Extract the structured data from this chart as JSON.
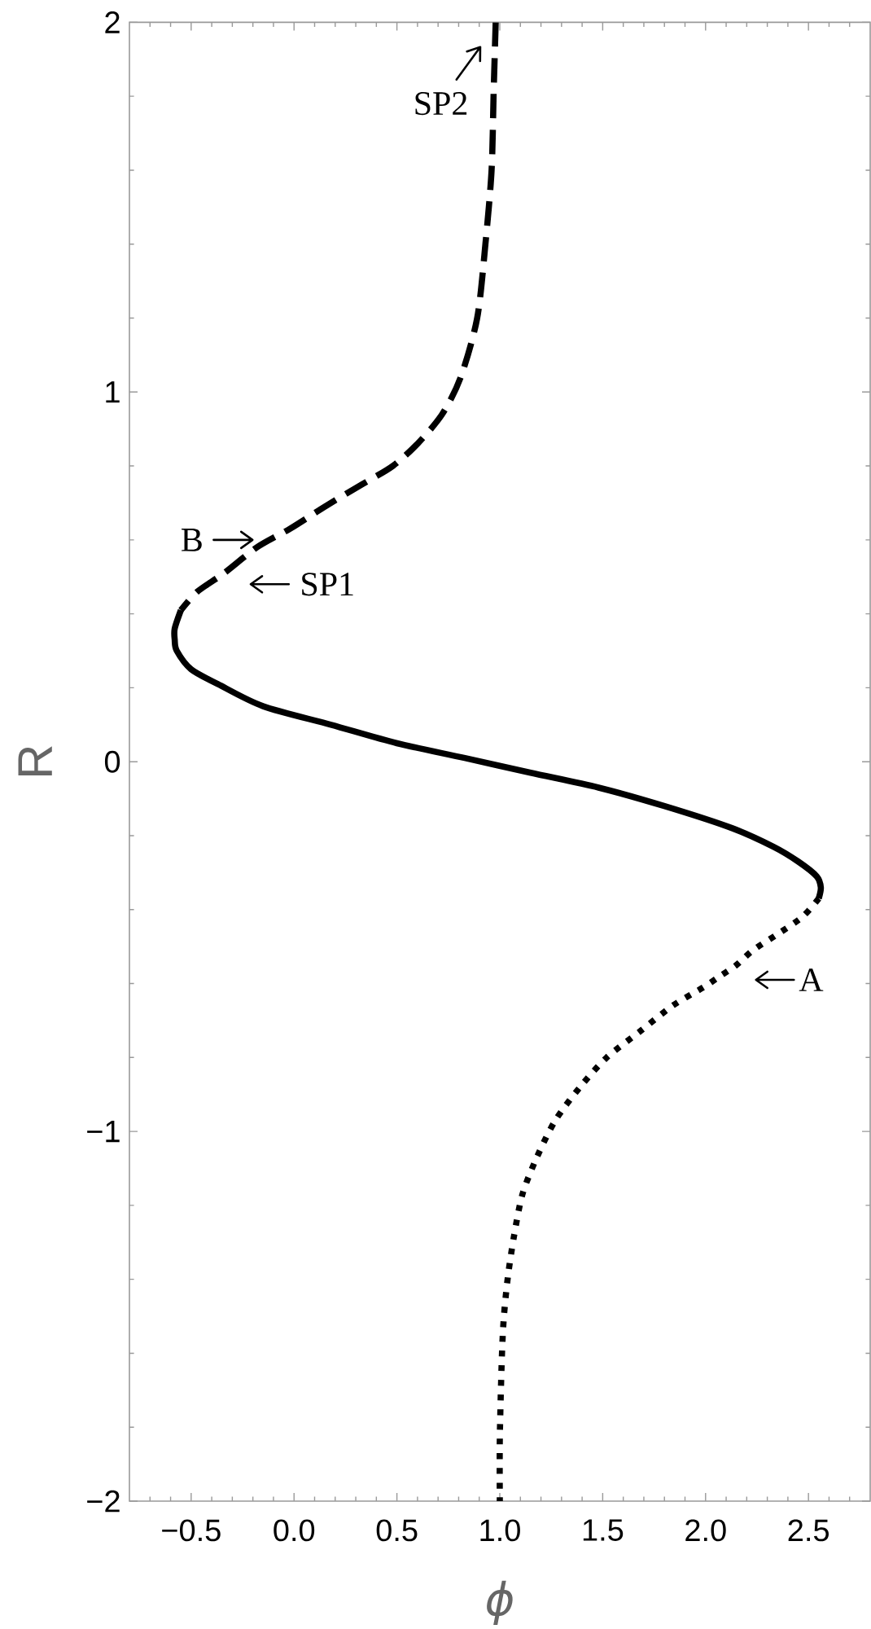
{
  "chart_data": {
    "type": "line",
    "xlabel": "ϕ",
    "ylabel": "R",
    "xlim": [
      -0.8,
      2.8
    ],
    "ylim": [
      -2,
      2
    ],
    "xticks": [
      {
        "value": -0.7,
        "label": null
      },
      {
        "value": -0.6,
        "label": null
      },
      {
        "value": -0.5,
        "label": "−0.5"
      },
      {
        "value": -0.4,
        "label": null
      },
      {
        "value": -0.3,
        "label": null
      },
      {
        "value": -0.2,
        "label": null
      },
      {
        "value": -0.1,
        "label": null
      },
      {
        "value": 0,
        "label": "0.0"
      },
      {
        "value": 0.1,
        "label": null
      },
      {
        "value": 0.2,
        "label": null
      },
      {
        "value": 0.3,
        "label": null
      },
      {
        "value": 0.4,
        "label": null
      },
      {
        "value": 0.5,
        "label": "0.5"
      },
      {
        "value": 0.6,
        "label": null
      },
      {
        "value": 0.7,
        "label": null
      },
      {
        "value": 0.8,
        "label": null
      },
      {
        "value": 0.9,
        "label": null
      },
      {
        "value": 1,
        "label": "1.0"
      },
      {
        "value": 1.1,
        "label": null
      },
      {
        "value": 1.2,
        "label": null
      },
      {
        "value": 1.3,
        "label": null
      },
      {
        "value": 1.4,
        "label": null
      },
      {
        "value": 1.5,
        "label": "1.5"
      },
      {
        "value": 1.6,
        "label": null
      },
      {
        "value": 1.7,
        "label": null
      },
      {
        "value": 1.8,
        "label": null
      },
      {
        "value": 1.9,
        "label": null
      },
      {
        "value": 2,
        "label": "2.0"
      },
      {
        "value": 2.1,
        "label": null
      },
      {
        "value": 2.2,
        "label": null
      },
      {
        "value": 2.3,
        "label": null
      },
      {
        "value": 2.4,
        "label": null
      },
      {
        "value": 2.5,
        "label": "2.5"
      },
      {
        "value": 2.6,
        "label": null
      },
      {
        "value": 2.7,
        "label": null
      }
    ],
    "yticks": [
      {
        "value": -2,
        "label": "−2"
      },
      {
        "value": -1.8,
        "label": null
      },
      {
        "value": -1.6,
        "label": null
      },
      {
        "value": -1.4,
        "label": null
      },
      {
        "value": -1.2,
        "label": null
      },
      {
        "value": -1,
        "label": "−1"
      },
      {
        "value": -0.8,
        "label": null
      },
      {
        "value": -0.6,
        "label": null
      },
      {
        "value": -0.4,
        "label": null
      },
      {
        "value": -0.2,
        "label": null
      },
      0,
      {
        "value": 0.2,
        "label": null
      },
      {
        "value": 0.4,
        "label": null
      },
      {
        "value": 0.6,
        "label": null
      },
      {
        "value": 0.8,
        "label": null
      },
      1,
      {
        "value": 1.2,
        "label": null
      },
      {
        "value": 1.4,
        "label": null
      },
      {
        "value": 1.6,
        "label": null
      },
      {
        "value": 1.8,
        "label": null
      },
      2
    ],
    "marker": "none",
    "series": [
      {
        "color": "#000000",
        "line_style": "dashed",
        "x": [
          0.98,
          0.97,
          0.96,
          0.93,
          0.89,
          0.81,
          0.72,
          0.6,
          0.48,
          0.33,
          0.15,
          -0.02,
          -0.18,
          -0.34,
          -0.47,
          -0.55
        ],
        "values": [
          2.0,
          1.81,
          1.6,
          1.4,
          1.2,
          1.04,
          0.94,
          0.86,
          0.8,
          0.75,
          0.69,
          0.63,
          0.58,
          0.51,
          0.46,
          0.41
        ]
      },
      {
        "color": "#000000",
        "line_style": "solid",
        "x": [
          -0.55,
          -0.58,
          -0.58,
          -0.57,
          -0.5,
          -0.37,
          -0.15,
          0.18,
          0.5,
          0.83,
          1.15,
          1.48,
          1.8,
          2.13,
          2.33,
          2.45,
          2.54,
          2.56,
          2.55
        ],
        "values": [
          0.41,
          0.36,
          0.33,
          0.3,
          0.25,
          0.21,
          0.15,
          0.1,
          0.05,
          0.01,
          -0.03,
          -0.07,
          -0.12,
          -0.18,
          -0.23,
          -0.27,
          -0.31,
          -0.34,
          -0.37
        ]
      },
      {
        "color": "#000000",
        "line_style": "dotted",
        "x": [
          2.55,
          2.47,
          2.34,
          2.23,
          2.15,
          2.07,
          1.99,
          1.84,
          1.68,
          1.52,
          1.39,
          1.27,
          1.18,
          1.11,
          1.07,
          1.04,
          1.02,
          1.01,
          1.0,
          1.0
        ],
        "values": [
          -0.37,
          -0.42,
          -0.47,
          -0.51,
          -0.55,
          -0.58,
          -0.61,
          -0.66,
          -0.73,
          -0.8,
          -0.88,
          -0.97,
          -1.07,
          -1.17,
          -1.28,
          -1.39,
          -1.5,
          -1.61,
          -1.83,
          -2.0
        ]
      }
    ],
    "annotations": [
      {
        "text": "SP2",
        "x": 0.98,
        "y": 1.93
      },
      {
        "text": "B",
        "x": -0.11,
        "y": 0.6
      },
      {
        "text": "SP1",
        "x": -0.41,
        "y": 0.48
      },
      {
        "text": "A",
        "x": 2.04,
        "y": -0.59
      }
    ]
  }
}
